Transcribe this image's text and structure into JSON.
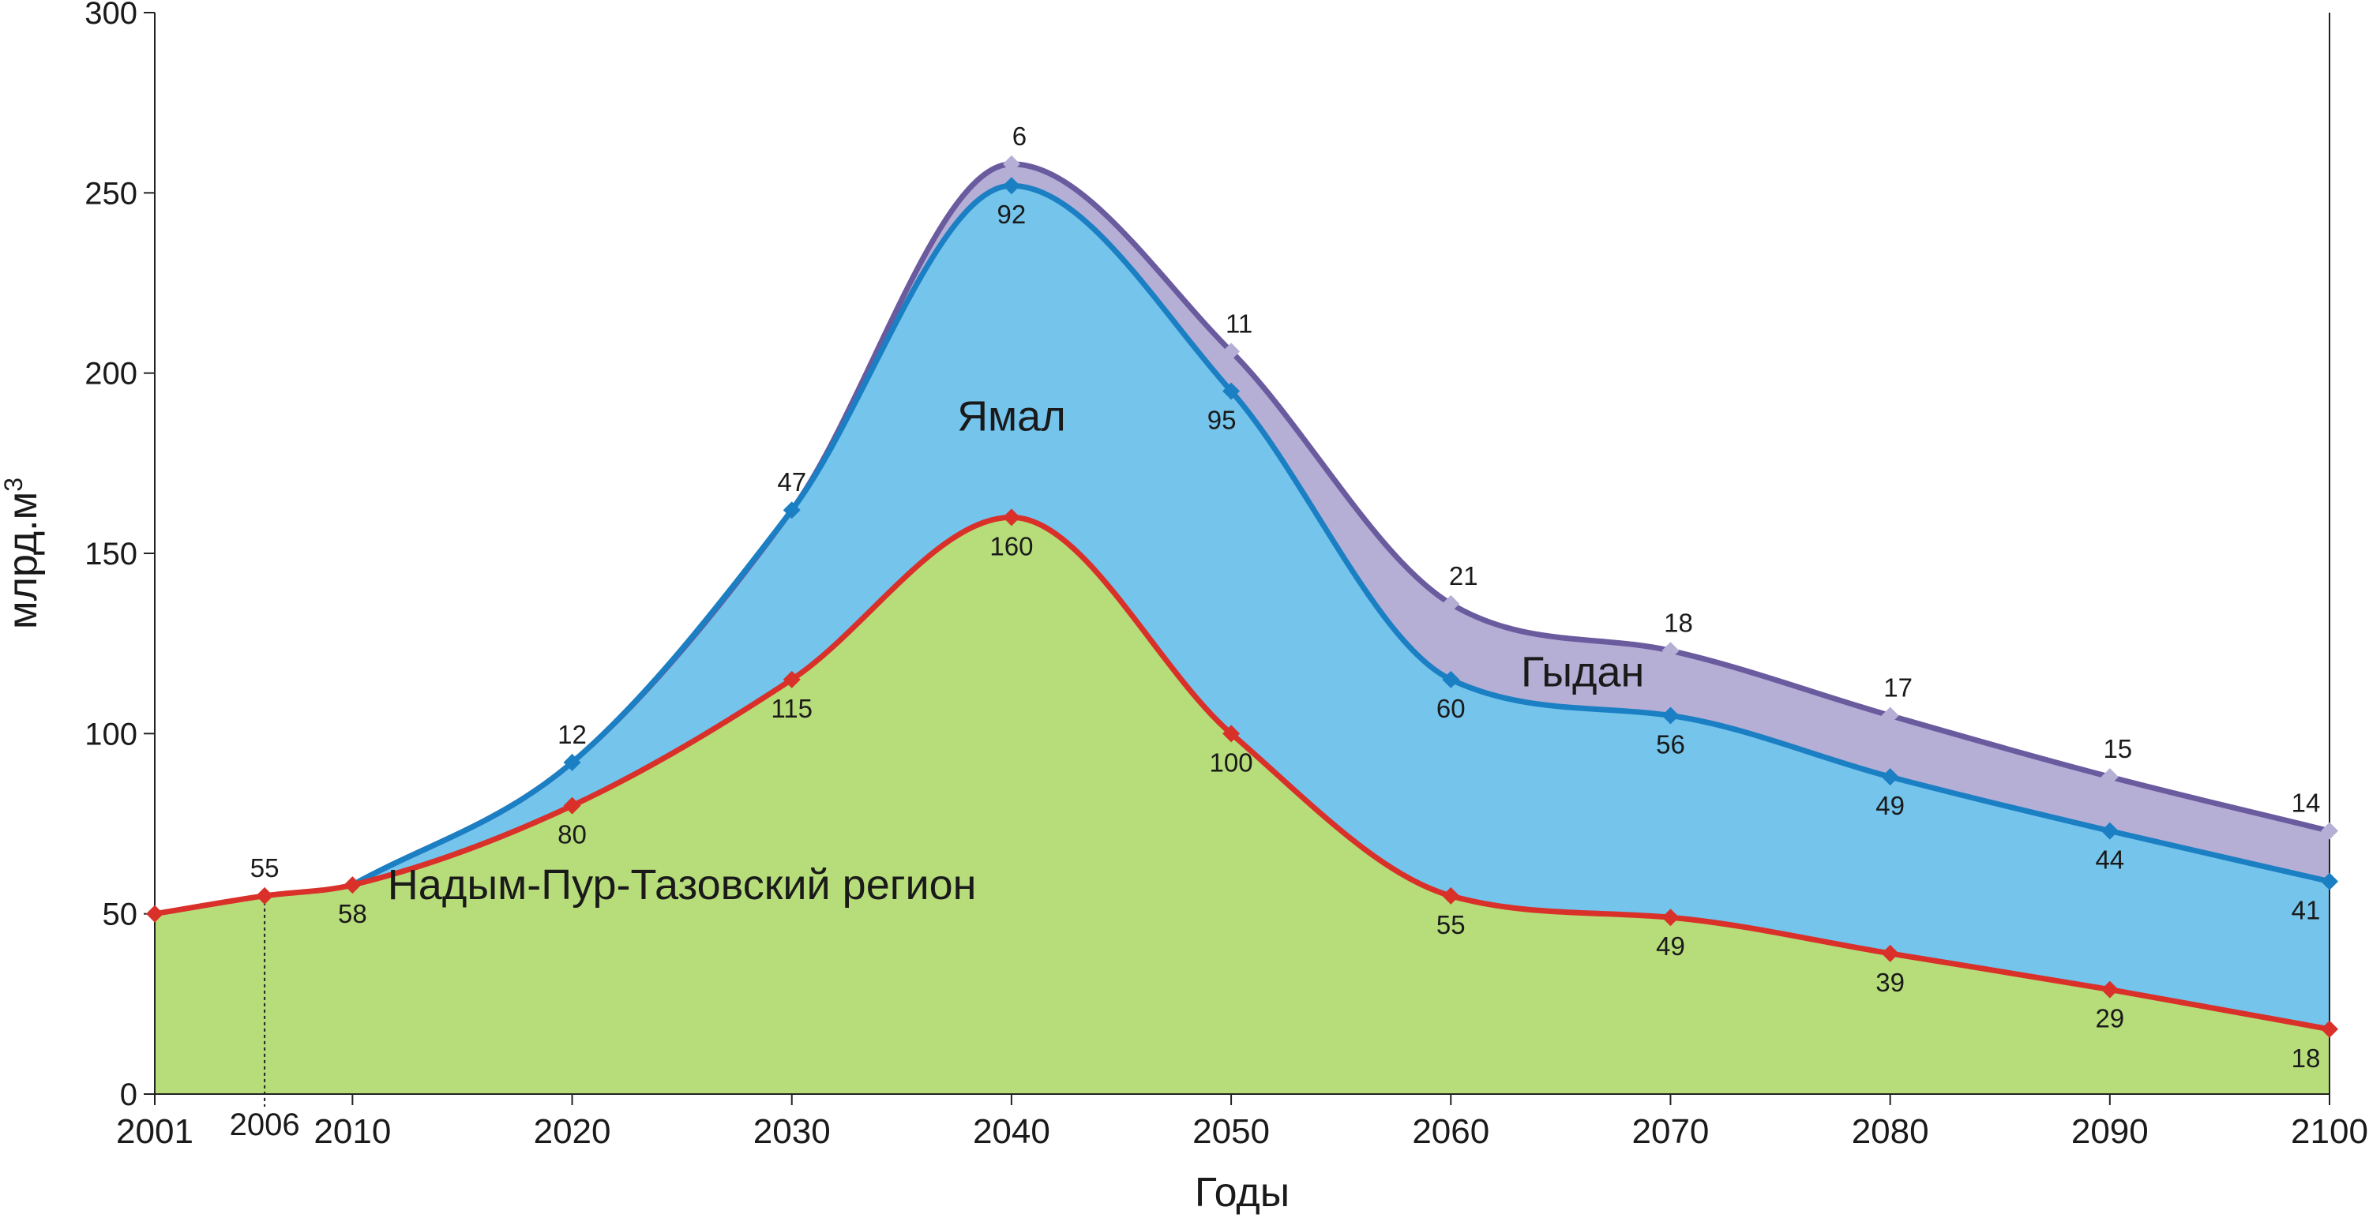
{
  "chart_data": {
    "type": "area",
    "stacked": true,
    "ylabel": "млрд.м",
    "ylabel_superscript": "3",
    "xlabel": "Годы",
    "xlim": [
      2001,
      2100
    ],
    "ylim": [
      0,
      300
    ],
    "y_ticks": [
      "0",
      "50",
      "100",
      "150",
      "200",
      "250",
      "300"
    ],
    "x_ticks": [
      "2001",
      "2010",
      "2020",
      "2030",
      "2040",
      "2050",
      "2060",
      "2070",
      "2080",
      "2090",
      "2100"
    ],
    "x_extra_tick": "2006",
    "grid": false,
    "series": [
      {
        "name": "Надым-Пур-Тазовский регион",
        "color": "#b7dc7a",
        "line_color": "#d9302a",
        "points": [
          {
            "x": 2001,
            "y": 50,
            "label": ""
          },
          {
            "x": 2006,
            "y": 55,
            "label": "55"
          },
          {
            "x": 2010,
            "y": 58,
            "label": "58"
          },
          {
            "x": 2020,
            "y": 80,
            "label": "80"
          },
          {
            "x": 2030,
            "y": 115,
            "label": "115"
          },
          {
            "x": 2040,
            "y": 160,
            "label": "160"
          },
          {
            "x": 2050,
            "y": 100,
            "label": "100"
          },
          {
            "x": 2060,
            "y": 55,
            "label": "55"
          },
          {
            "x": 2070,
            "y": 49,
            "label": "49"
          },
          {
            "x": 2080,
            "y": 39,
            "label": "39"
          },
          {
            "x": 2090,
            "y": 29,
            "label": "29"
          },
          {
            "x": 2100,
            "y": 18,
            "label": "18"
          }
        ]
      },
      {
        "name": "Ямал",
        "color": "#74c4ec",
        "line_color": "#1b7fc3",
        "points": [
          {
            "x": 2010,
            "y": 0,
            "label": ""
          },
          {
            "x": 2020,
            "y": 12,
            "label": "12"
          },
          {
            "x": 2030,
            "y": 47,
            "label": "47"
          },
          {
            "x": 2040,
            "y": 92,
            "label": "92"
          },
          {
            "x": 2050,
            "y": 95,
            "label": "95"
          },
          {
            "x": 2060,
            "y": 60,
            "label": "60"
          },
          {
            "x": 2070,
            "y": 56,
            "label": "56"
          },
          {
            "x": 2080,
            "y": 49,
            "label": "49"
          },
          {
            "x": 2090,
            "y": 44,
            "label": "44"
          },
          {
            "x": 2100,
            "y": 41,
            "label": "41"
          }
        ]
      },
      {
        "name": "Гыдан",
        "color": "#b5afd6",
        "line_color": "#6a5b9f",
        "points": [
          {
            "x": 2040,
            "y": 6,
            "label": "6"
          },
          {
            "x": 2050,
            "y": 11,
            "label": "11"
          },
          {
            "x": 2060,
            "y": 21,
            "label": "21"
          },
          {
            "x": 2070,
            "y": 18,
            "label": "18"
          },
          {
            "x": 2080,
            "y": 17,
            "label": "17"
          },
          {
            "x": 2090,
            "y": 15,
            "label": "15"
          },
          {
            "x": 2100,
            "y": 14,
            "label": "14"
          }
        ]
      }
    ],
    "region_labels": [
      {
        "text": "Надым-Пур-Тазовский регион",
        "x": 2025,
        "y": 58
      },
      {
        "text": "Ямал",
        "x": 2040,
        "y": 188
      },
      {
        "text": "Гыдан",
        "x": 2066,
        "y": 117
      }
    ]
  }
}
